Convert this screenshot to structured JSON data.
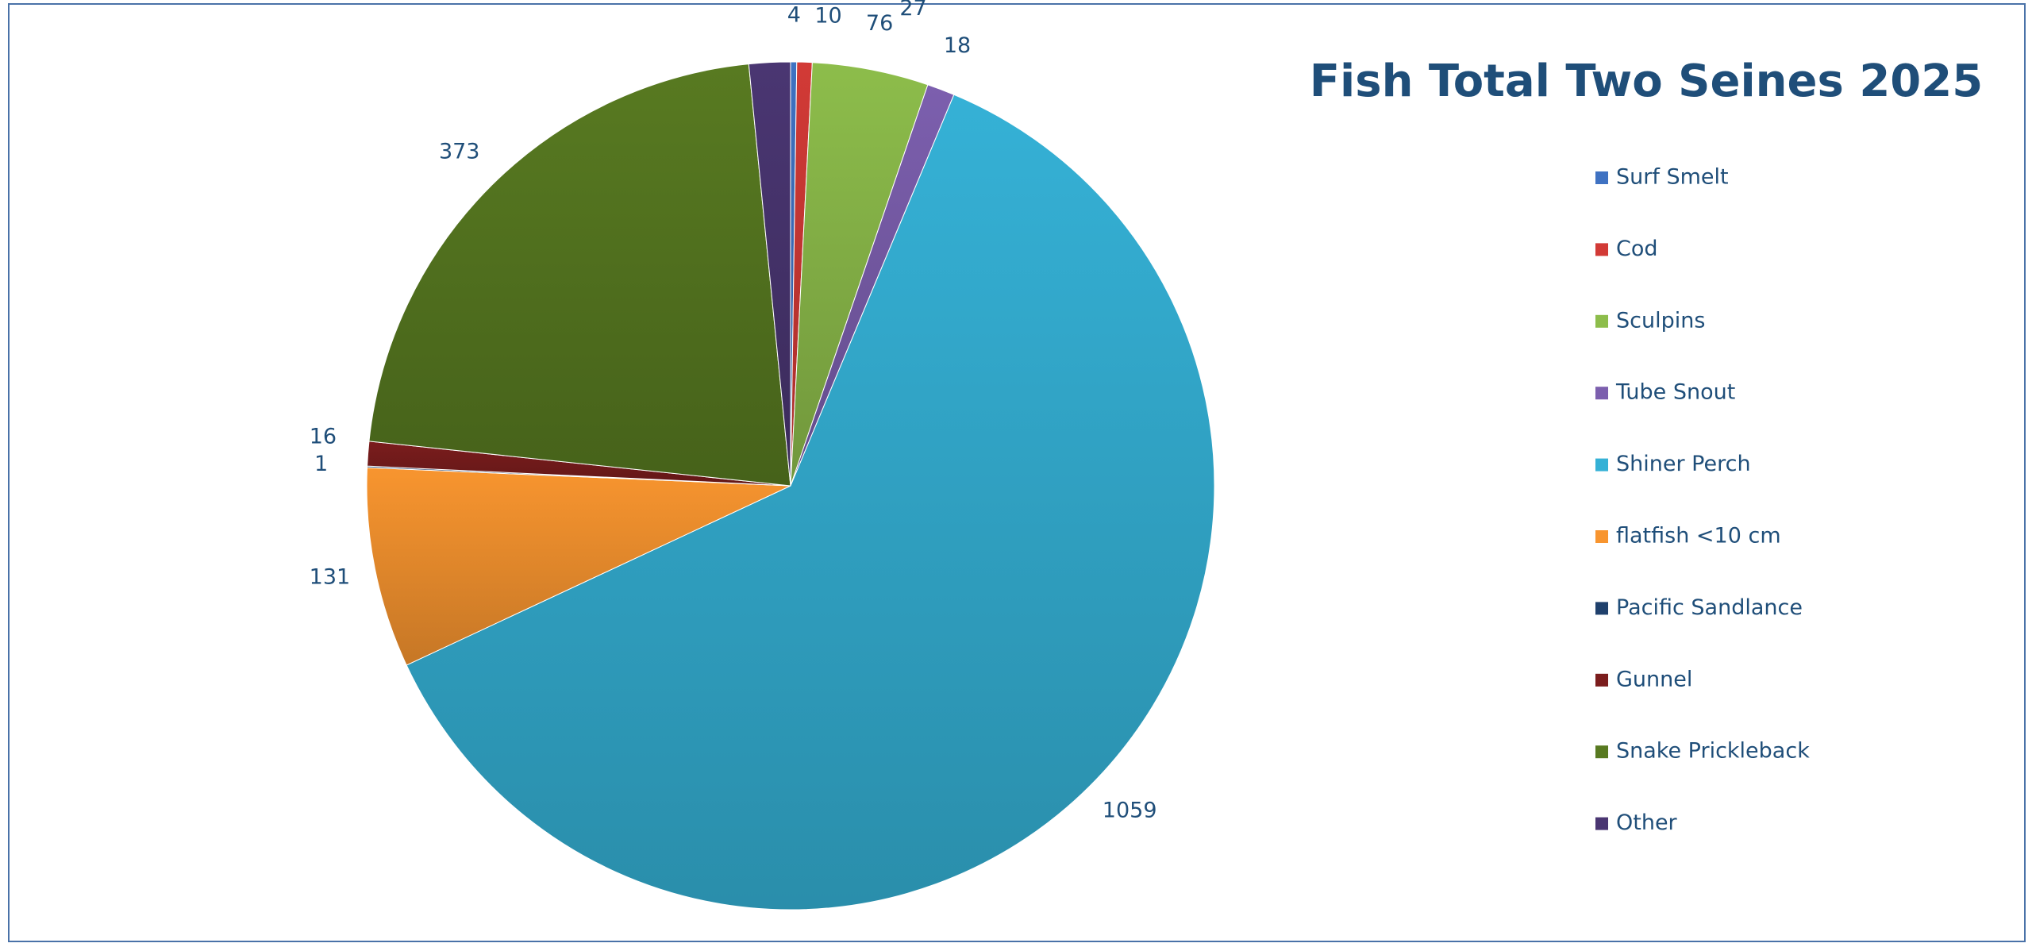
{
  "chart_data": {
    "type": "pie",
    "title": "Fish Total Two Seines 2025",
    "categories": [
      "Surf Smelt",
      "Cod",
      "Sculpins",
      "Tube Snout",
      "Shiner Perch",
      "flatfish <10 cm",
      "Pacific Sandlance",
      "Gunnel",
      "Snake Prickleback",
      "Other"
    ],
    "values": [
      4,
      10,
      76,
      18,
      1059,
      131,
      1,
      16,
      373,
      27
    ],
    "colors": [
      "#3f72c2",
      "#d23a36",
      "#8dbd4b",
      "#7c5fae",
      "#35b1d6",
      "#f8952f",
      "#1f406c",
      "#7b1d1d",
      "#587a21",
      "#4a3672"
    ],
    "legend": "right"
  }
}
